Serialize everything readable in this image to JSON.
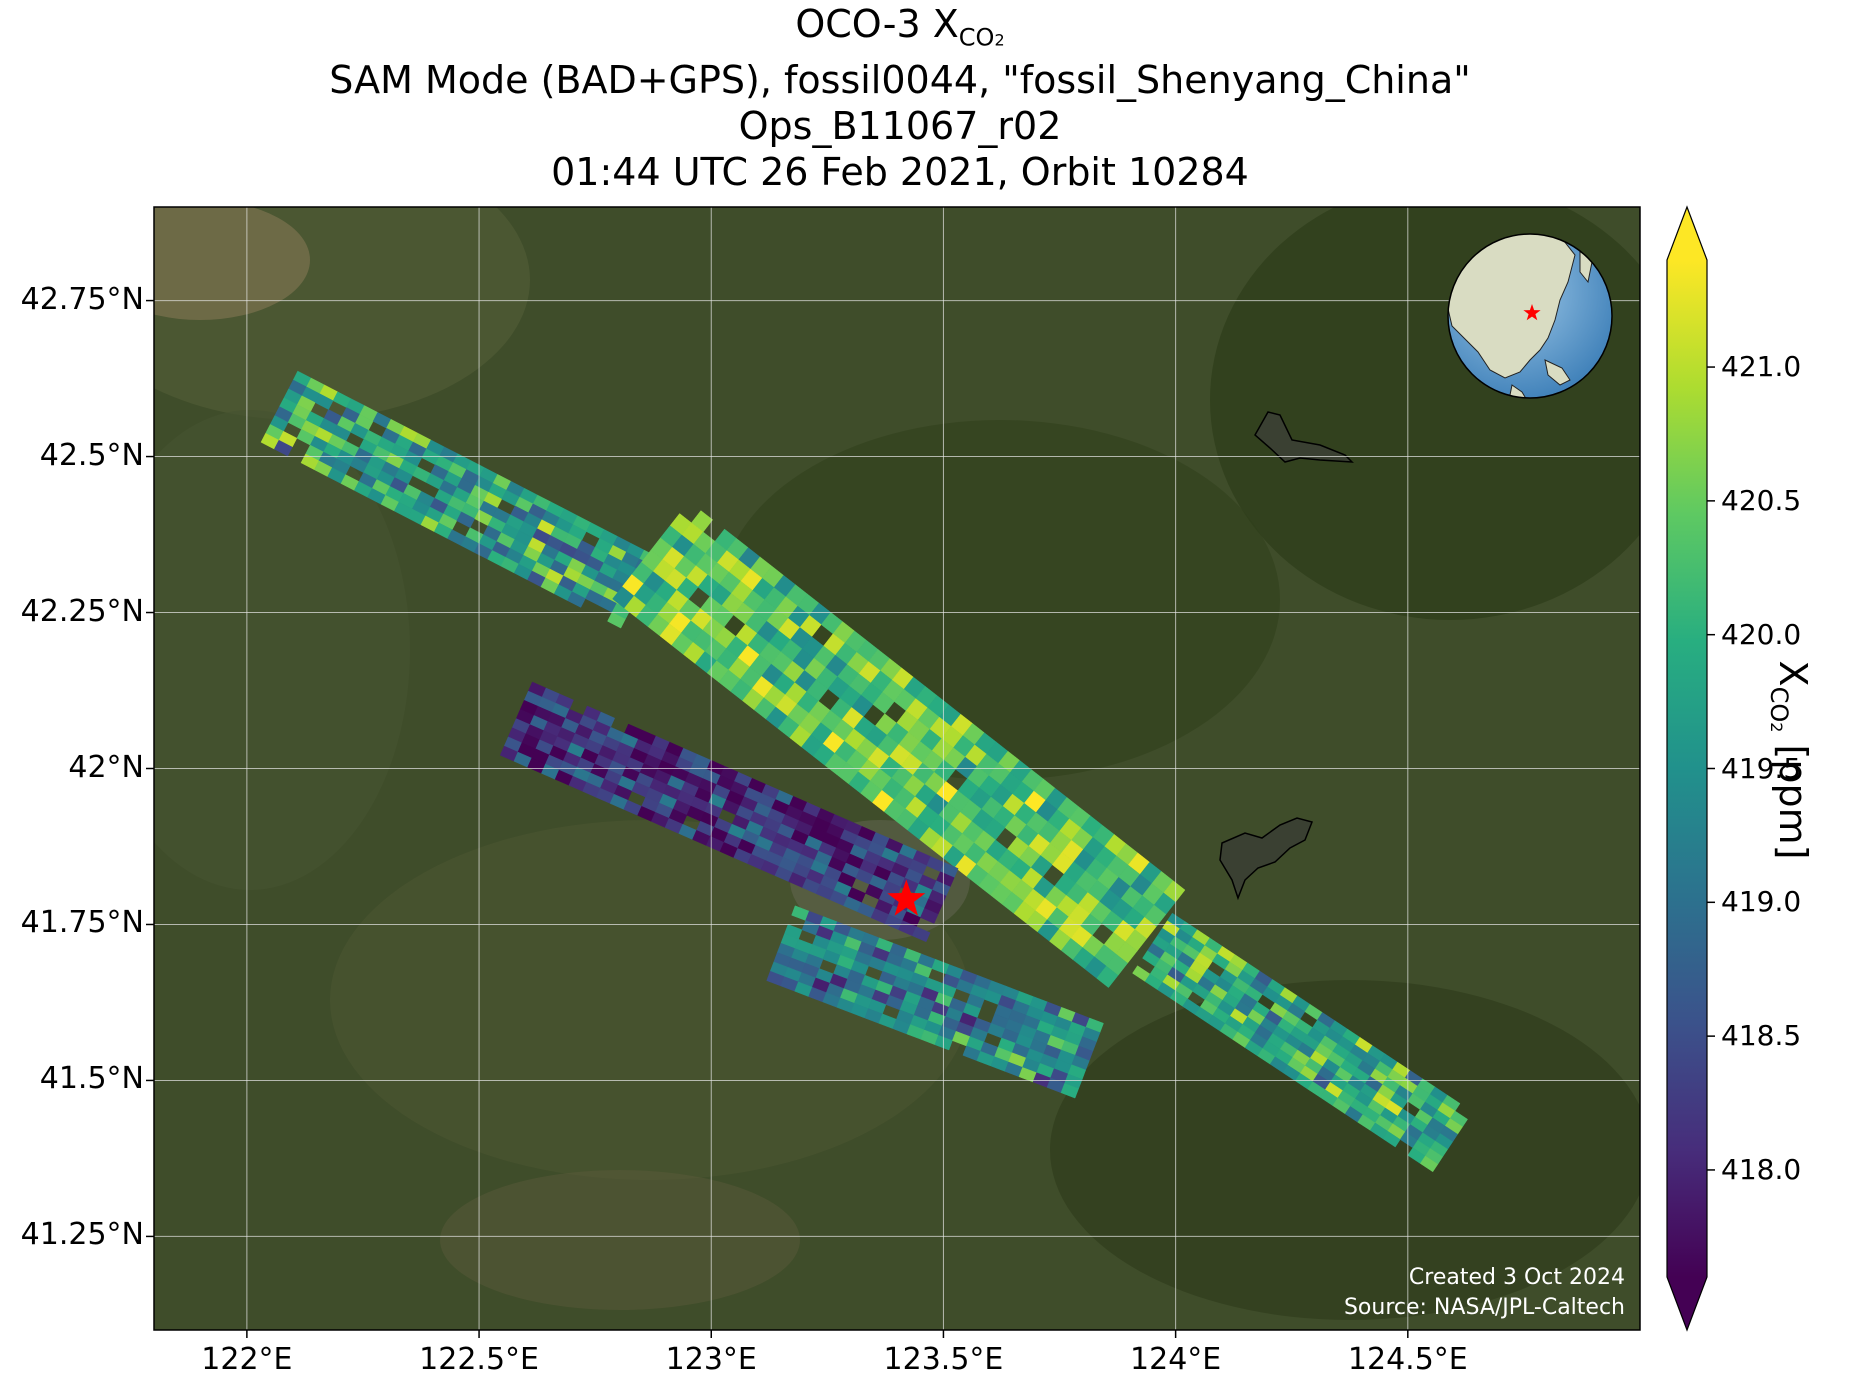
{
  "title": {
    "line1_main": "OCO-3 X",
    "line1_sub": "CO",
    "line1_sub2": "2",
    "line2": "SAM Mode (BAD+GPS), fossil0044, \"fossil_Shenyang_China\"",
    "line3": "Ops_B11067_r02",
    "line4": "01:44 UTC 26 Feb 2021, Orbit 10284"
  },
  "map": {
    "lon_range": [
      121.8,
      125.0
    ],
    "lat_range": [
      41.1,
      42.9
    ],
    "lon_ticks": [
      "122°E",
      "122.5°E",
      "123°E",
      "123.5°E",
      "124°E",
      "124.5°E"
    ],
    "lon_tick_values": [
      122.0,
      122.5,
      123.0,
      123.5,
      124.0,
      124.5
    ],
    "lat_ticks": [
      "42.75°N",
      "42.5°N",
      "42.25°N",
      "42°N",
      "41.75°N",
      "41.5°N",
      "41.25°N"
    ],
    "lat_tick_values": [
      42.75,
      42.5,
      42.25,
      42.0,
      41.75,
      41.5,
      41.25
    ],
    "gridlines": true,
    "basemap": "satellite imagery",
    "target_marker": {
      "icon": "red-star-icon",
      "lon": 123.42,
      "lat": 41.79,
      "color": "#ff0000"
    },
    "inset_globe": {
      "location": "top-right",
      "marker": "red-star-icon"
    }
  },
  "colorbar": {
    "label_main": "X",
    "label_sub": "CO",
    "label_sub2": "2",
    "label_unit": " [ppm]",
    "min": 417.6,
    "max": 421.4,
    "ticks": [
      "418.0",
      "418.5",
      "419.0",
      "419.5",
      "420.0",
      "420.5",
      "421.0"
    ],
    "tick_values": [
      418.0,
      418.5,
      419.0,
      419.5,
      420.0,
      420.5,
      421.0
    ],
    "colormap": "viridis",
    "extend": "both"
  },
  "credits": {
    "created": "Created 3 Oct 2024",
    "source": "Source: NASA/JPL-Caltech"
  },
  "chart_data": {
    "type": "heatmap",
    "units": "ppm",
    "swaths": [
      {
        "name": "",
        "start": [
          122.07,
          42.58
        ],
        "end": [
          122.85,
          42.28
        ],
        "mean": 419.8,
        "spread": 1.6
      },
      {
        "name": "",
        "start": [
          122.87,
          42.35
        ],
        "end": [
          123.95,
          41.72
        ],
        "mean": 420.4,
        "spread": 1.3
      },
      {
        "name": "",
        "start": [
          123.95,
          41.72
        ],
        "end": [
          124.6,
          41.4
        ],
        "mean": 419.9,
        "spread": 1.4
      },
      {
        "name": "",
        "start": [
          122.58,
          42.08
        ],
        "end": [
          123.5,
          41.78
        ],
        "mean": 418.2,
        "spread": 1.2
      },
      {
        "name": "",
        "start": [
          123.15,
          41.72
        ],
        "end": [
          123.82,
          41.53
        ],
        "mean": 419.3,
        "spread": 1.5
      }
    ]
  }
}
